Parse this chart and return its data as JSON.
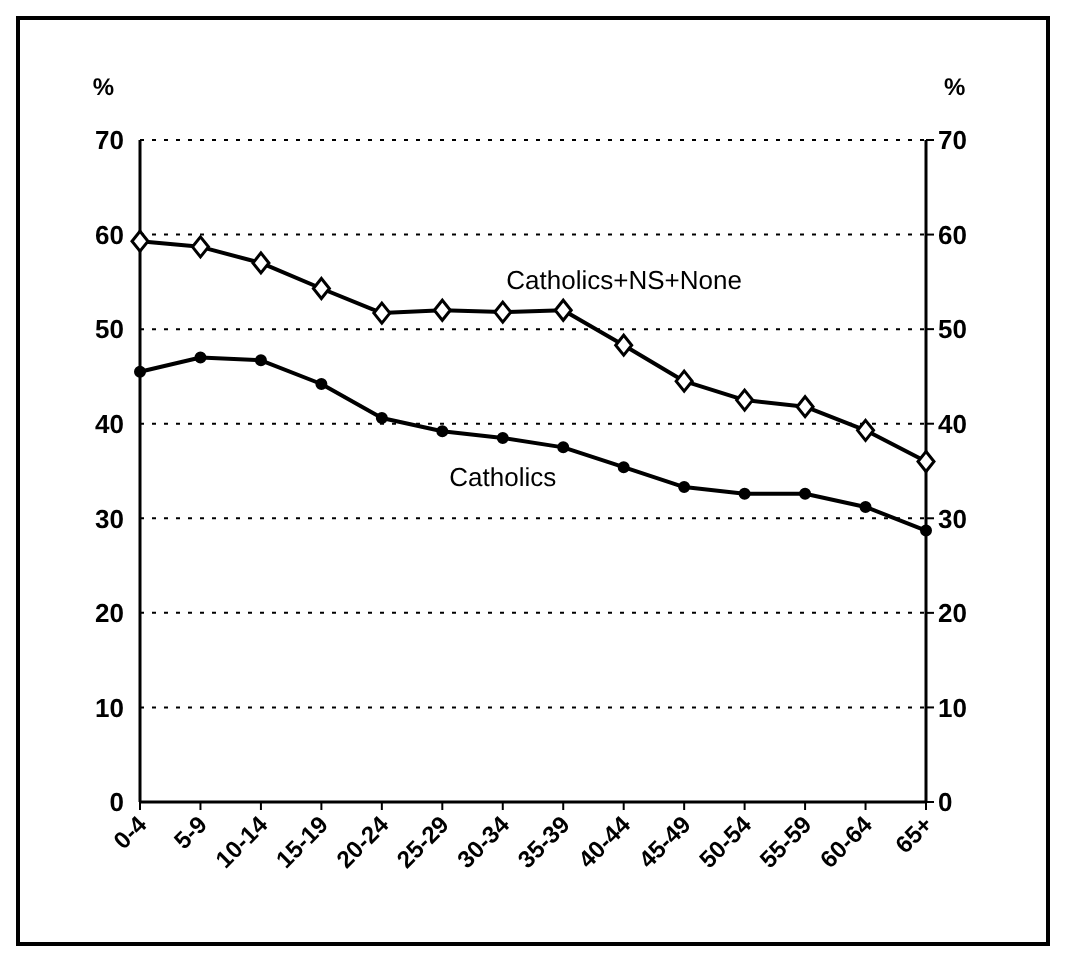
{
  "chart_data": {
    "type": "line",
    "ylabel": "%",
    "y2label": "%",
    "categories": [
      "0-4",
      "5-9",
      "10-14",
      "15-19",
      "20-24",
      "25-29",
      "30-34",
      "35-39",
      "40-44",
      "45-49",
      "50-54",
      "55-59",
      "60-64",
      "65+"
    ],
    "series": [
      {
        "name": "Catholics+NS+None",
        "color": "#000000",
        "marker": "diamond",
        "values": [
          59.3,
          58.7,
          57,
          54.3,
          51.7,
          52,
          51.8,
          52,
          48.3,
          44.5,
          42.5,
          41.8,
          39.3,
          36
        ]
      },
      {
        "name": "Catholics",
        "color": "#000000",
        "marker": "circle",
        "values": [
          45.5,
          47,
          46.7,
          44.2,
          40.6,
          39.2,
          38.5,
          37.5,
          35.4,
          33.3,
          32.6,
          32.6,
          31.2,
          28.7
        ]
      }
    ],
    "ylim": [
      0,
      70
    ],
    "yticks": [
      0,
      10,
      20,
      30,
      40,
      50,
      60,
      70
    ],
    "y2lim": [
      0,
      70
    ],
    "y2ticks": [
      0,
      10,
      20,
      30,
      40,
      50,
      60,
      70
    ],
    "grid": "y",
    "legend": false,
    "line_style": "solid"
  }
}
